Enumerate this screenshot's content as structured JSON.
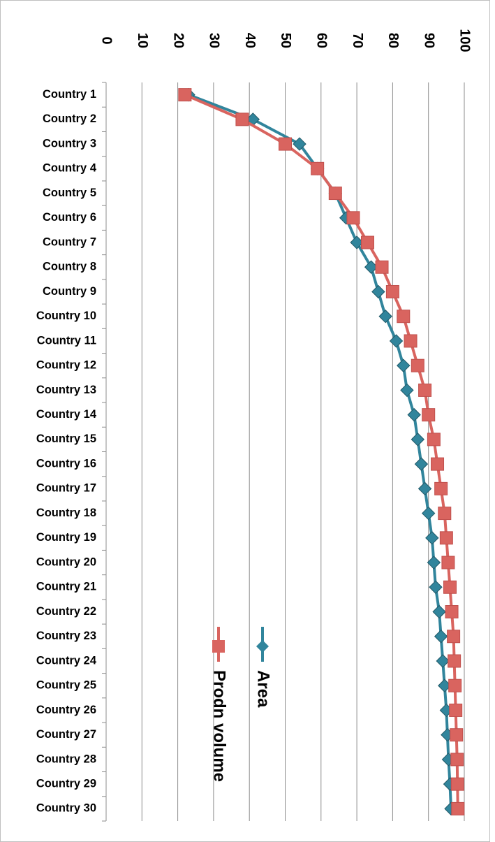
{
  "chart_data": {
    "type": "line",
    "orientation": "categories-vertical, value-axis-top",
    "categories": [
      "Country 1",
      "Country 2",
      "Country 3",
      "Country 4",
      "Country 5",
      "Country 6",
      "Country 7",
      "Country 8",
      "Country 9",
      "Country 10",
      "Country 11",
      "Country 12",
      "Country 13",
      "Country 14",
      "Country 15",
      "Country 16",
      "Country 17",
      "Country 18",
      "Country 19",
      "Country 20",
      "Country 21",
      "Country 22",
      "Country 23",
      "Country 24",
      "Country 25",
      "Country 26",
      "Country 27",
      "Country 28",
      "Country 29",
      "Country 30"
    ],
    "series": [
      {
        "name": "Area",
        "color": "#31859c",
        "marker": "diamond",
        "values": [
          23,
          41,
          54,
          59,
          64,
          67,
          70,
          74,
          76,
          78,
          81,
          83,
          84,
          86,
          87,
          88,
          89,
          90,
          91,
          91.5,
          92,
          93,
          93.5,
          94,
          94.5,
          95,
          95.3,
          95.6,
          96,
          96.3
        ]
      },
      {
        "name": "Prodn volume",
        "color": "#d9645f",
        "marker": "square",
        "values": [
          22,
          38,
          50,
          59,
          64,
          69,
          73,
          77,
          80,
          83,
          85,
          87,
          89,
          90,
          91.5,
          92.5,
          93.5,
          94.5,
          95,
          95.5,
          96,
          96.5,
          97,
          97.2,
          97.4,
          97.6,
          97.8,
          98,
          98.1,
          98.2
        ]
      }
    ],
    "value_axis": {
      "ticks": [
        "0",
        "10",
        "20",
        "30",
        "40",
        "50",
        "60",
        "70",
        "80",
        "90",
        "100"
      ],
      "range": [
        0,
        100
      ]
    },
    "grid": true,
    "legend_position": "bottom-center, rotated"
  }
}
